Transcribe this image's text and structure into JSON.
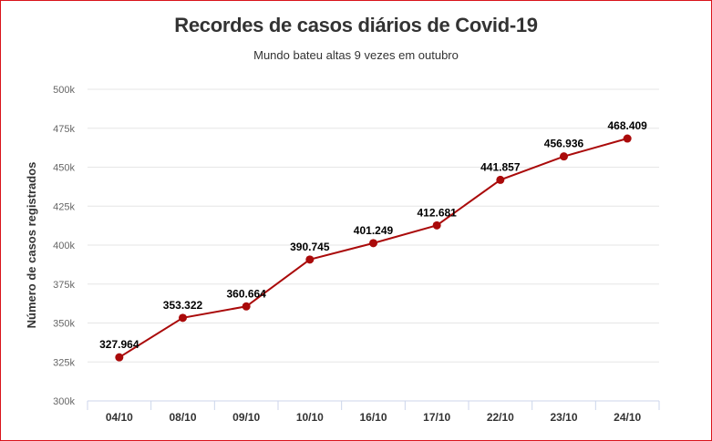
{
  "chart_data": {
    "type": "line",
    "title": "Recordes de casos diários de Covid-19",
    "subtitle": "Mundo bateu altas 9 vezes em outubro",
    "xlabel": "",
    "ylabel": "Número de casos registrados",
    "categories": [
      "04/10",
      "08/10",
      "09/10",
      "10/10",
      "16/10",
      "17/10",
      "22/10",
      "23/10",
      "24/10"
    ],
    "series": [
      {
        "values": [
          327964,
          353322,
          360664,
          390745,
          401249,
          412681,
          441857,
          456936,
          468409
        ],
        "data_labels": [
          "327.964",
          "353.322",
          "360.664",
          "390.745",
          "401.249",
          "412.681",
          "441.857",
          "456.936",
          "468.409"
        ]
      }
    ],
    "ylim": [
      300000,
      500000
    ],
    "yticks": [
      300000,
      325000,
      350000,
      375000,
      400000,
      425000,
      450000,
      475000,
      500000
    ],
    "ytick_labels": [
      "300k",
      "325k",
      "350k",
      "375k",
      "400k",
      "425k",
      "450k",
      "475k",
      "500k"
    ],
    "grid": true,
    "legend": "none",
    "colors": {
      "line": "#aa0a0a",
      "marker": "#aa0a0a",
      "grid": "#e6e6e6",
      "border": "#d9141b"
    }
  }
}
